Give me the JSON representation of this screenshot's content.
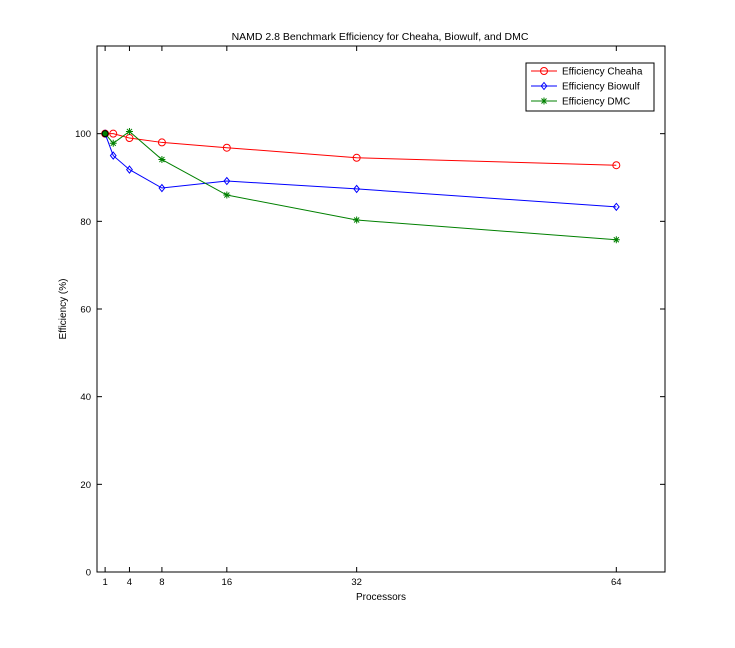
{
  "chart_data": {
    "type": "line",
    "title": "NAMD 2.8 Benchmark Efficiency for Cheaha, Biowulf, and DMC",
    "xlabel": "Processors",
    "ylabel": "Efficiency (%)",
    "xlim": [
      0,
      70
    ],
    "ylim": [
      0,
      120
    ],
    "xticks": [
      1,
      4,
      8,
      16,
      32,
      64
    ],
    "yticks": [
      0,
      20,
      40,
      60,
      80,
      100
    ],
    "grid": false,
    "legend_position": "top-right",
    "series": [
      {
        "name": "Efficiency Cheaha",
        "color": "#ff0000",
        "marker": "circle",
        "x": [
          1,
          2,
          4,
          8,
          16,
          32,
          64
        ],
        "y": [
          100,
          100,
          99,
          98,
          96.8,
          94.5,
          92.8
        ]
      },
      {
        "name": "Efficiency Biowulf",
        "color": "#0000ff",
        "marker": "diamond",
        "x": [
          1,
          2,
          4,
          8,
          16,
          32,
          64
        ],
        "y": [
          100,
          95,
          91.8,
          87.6,
          89.2,
          87.4,
          83.3
        ]
      },
      {
        "name": "Efficiency DMC",
        "color": "#008000",
        "marker": "star",
        "x": [
          1,
          2,
          4,
          8,
          16,
          32,
          64
        ],
        "y": [
          100,
          97.8,
          100.5,
          94.1,
          86.0,
          80.3,
          75.8
        ]
      }
    ]
  }
}
